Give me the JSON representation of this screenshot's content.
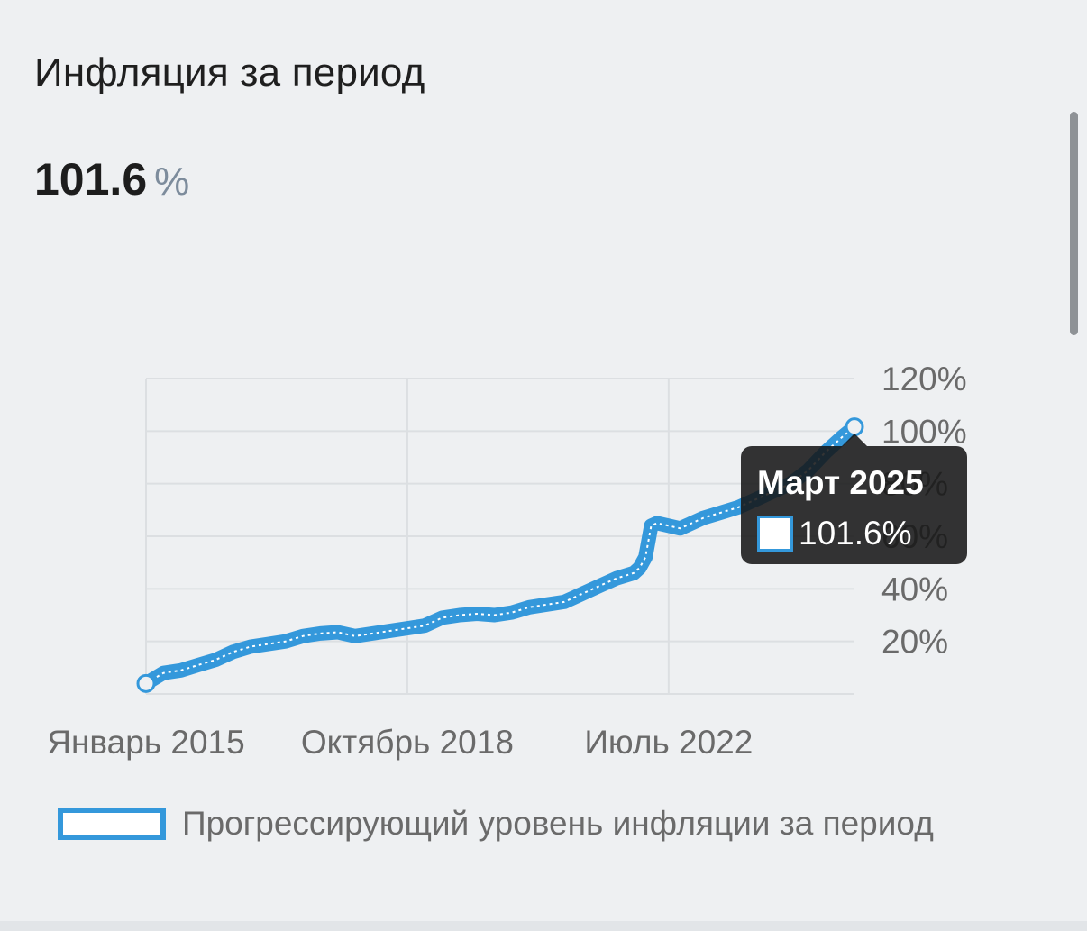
{
  "header": {
    "title": "Инфляция за период",
    "value": "101.6",
    "unit": "%"
  },
  "tooltip": {
    "title": "Март 2025",
    "value": "101.6%"
  },
  "colors": {
    "series": "#3498db",
    "grid": "#dcdfe2",
    "background": "#eef0f2"
  },
  "chart_data": {
    "type": "line",
    "title": "",
    "xlabel": "",
    "ylabel": "",
    "x_range": [
      "2015-01",
      "2025-03"
    ],
    "ylim": [
      0,
      120
    ],
    "y_ticks": [
      {
        "value": 20,
        "label": "20%"
      },
      {
        "value": 40,
        "label": "40%"
      },
      {
        "value": 60,
        "label": "60%"
      },
      {
        "value": 80,
        "label": "80%"
      },
      {
        "value": 100,
        "label": "100%"
      },
      {
        "value": 120,
        "label": "120%"
      }
    ],
    "x_ticks": [
      {
        "value": "2015-01",
        "label": "Январь 2015"
      },
      {
        "value": "2018-10",
        "label": "Октябрь 2018"
      },
      {
        "value": "2022-07",
        "label": "Июль 2022"
      }
    ],
    "grid": true,
    "legend_position": "bottom-left",
    "series": [
      {
        "name": "Прогрессирующий уровень инфляции за период",
        "points": [
          [
            "2015-01",
            4
          ],
          [
            "2015-04",
            8
          ],
          [
            "2015-07",
            9
          ],
          [
            "2015-10",
            11
          ],
          [
            "2016-01",
            13
          ],
          [
            "2016-04",
            16
          ],
          [
            "2016-07",
            18
          ],
          [
            "2016-10",
            19
          ],
          [
            "2017-01",
            20
          ],
          [
            "2017-04",
            22
          ],
          [
            "2017-07",
            23
          ],
          [
            "2017-10",
            23.5
          ],
          [
            "2018-01",
            22
          ],
          [
            "2018-04",
            23
          ],
          [
            "2018-07",
            24
          ],
          [
            "2018-10",
            25
          ],
          [
            "2019-01",
            26
          ],
          [
            "2019-04",
            29
          ],
          [
            "2019-07",
            30
          ],
          [
            "2019-10",
            30.5
          ],
          [
            "2020-01",
            30
          ],
          [
            "2020-04",
            31
          ],
          [
            "2020-07",
            33
          ],
          [
            "2020-10",
            34
          ],
          [
            "2021-01",
            35
          ],
          [
            "2021-04",
            38
          ],
          [
            "2021-07",
            41
          ],
          [
            "2021-10",
            44
          ],
          [
            "2022-01",
            46
          ],
          [
            "2022-02",
            48
          ],
          [
            "2022-03",
            52
          ],
          [
            "2022-04",
            64
          ],
          [
            "2022-05",
            65
          ],
          [
            "2022-07",
            64
          ],
          [
            "2022-09",
            63
          ],
          [
            "2022-10",
            64
          ],
          [
            "2023-01",
            67
          ],
          [
            "2023-04",
            69
          ],
          [
            "2023-07",
            71
          ],
          [
            "2023-10",
            74
          ],
          [
            "2024-01",
            77
          ],
          [
            "2024-04",
            80
          ],
          [
            "2024-07",
            85
          ],
          [
            "2024-10",
            92
          ],
          [
            "2025-01",
            98
          ],
          [
            "2025-03",
            101.6
          ]
        ]
      }
    ]
  }
}
